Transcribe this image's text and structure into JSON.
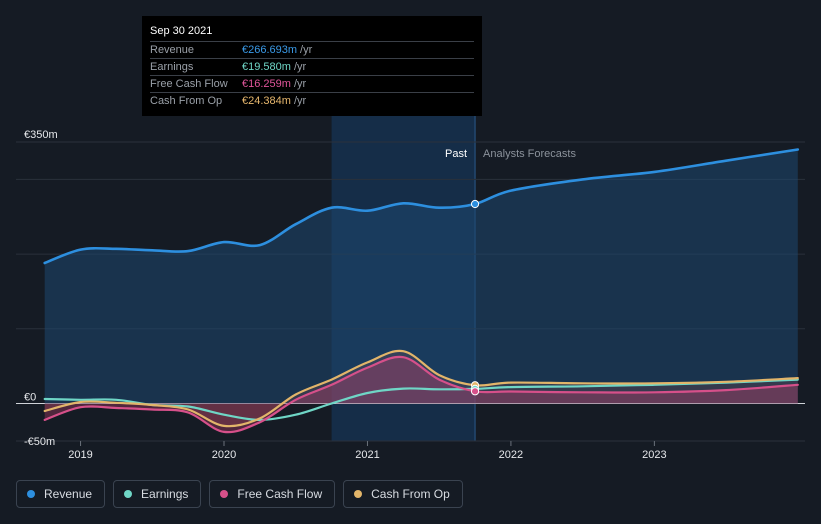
{
  "colors": {
    "revenue": "#2d8fdf",
    "earnings": "#6fd6c6",
    "fcf": "#d6508a",
    "cfo": "#e2b56a"
  },
  "tooltip": {
    "date": "Sep 30 2021",
    "rows": [
      {
        "label": "Revenue",
        "value": "€266.693m",
        "unit": "/yr",
        "color": "#3a9ae8"
      },
      {
        "label": "Earnings",
        "value": "€19.580m",
        "unit": "/yr",
        "color": "#6fd6c6"
      },
      {
        "label": "Free Cash Flow",
        "value": "€16.259m",
        "unit": "/yr",
        "color": "#e0559a"
      },
      {
        "label": "Cash From Op",
        "value": "€24.384m",
        "unit": "/yr",
        "color": "#e8b86e"
      }
    ]
  },
  "legend": [
    {
      "label": "Revenue",
      "color": "#2d8fdf"
    },
    {
      "label": "Earnings",
      "color": "#6fd6c6"
    },
    {
      "label": "Free Cash Flow",
      "color": "#d6508a"
    },
    {
      "label": "Cash From Op",
      "color": "#e2b56a"
    }
  ],
  "chart_data": {
    "type": "line",
    "y_tick_labels": [
      "€350m",
      "€0",
      "-€50m"
    ],
    "ylim": [
      -50,
      350
    ],
    "x_tick_labels": [
      "2019",
      "2020",
      "2021",
      "2022",
      "2023"
    ],
    "xlim": [
      2018.55,
      2024.05
    ],
    "past_label": "Past",
    "forecast_label": "Analysts Forecasts",
    "past_end": 2021.75,
    "highlight_start": 2020.75,
    "series": [
      {
        "name": "Revenue",
        "key": "revenue",
        "x": [
          2018.75,
          2019.0,
          2019.25,
          2019.5,
          2019.75,
          2020.0,
          2020.25,
          2020.5,
          2020.75,
          2021.0,
          2021.25,
          2021.5,
          2021.75,
          2022.0,
          2022.5,
          2023.0,
          2023.5,
          2024.0
        ],
        "y": [
          188,
          206,
          207,
          205,
          204,
          216,
          212,
          240,
          262,
          258,
          268,
          262,
          267,
          285,
          300,
          310,
          325,
          340
        ]
      },
      {
        "name": "Earnings",
        "key": "earnings",
        "x": [
          2018.75,
          2019.0,
          2019.25,
          2019.5,
          2019.75,
          2020.0,
          2020.25,
          2020.5,
          2020.75,
          2021.0,
          2021.25,
          2021.5,
          2021.75,
          2022.0,
          2022.5,
          2023.0,
          2023.5,
          2024.0
        ],
        "y": [
          6,
          5,
          5,
          -2,
          -4,
          -15,
          -22,
          -15,
          0,
          14,
          20,
          19,
          19.6,
          22,
          23,
          25,
          28,
          32
        ]
      },
      {
        "name": "Free Cash Flow",
        "key": "fcf",
        "x": [
          2018.75,
          2019.0,
          2019.25,
          2019.5,
          2019.75,
          2020.0,
          2020.25,
          2020.5,
          2020.75,
          2021.0,
          2021.25,
          2021.5,
          2021.75,
          2022.0,
          2022.5,
          2023.0,
          2023.5,
          2024.0
        ],
        "y": [
          -22,
          -5,
          -6,
          -8,
          -12,
          -38,
          -25,
          5,
          25,
          48,
          62,
          32,
          16.3,
          16,
          15,
          15,
          18,
          25
        ]
      },
      {
        "name": "Cash From Op",
        "key": "cfo",
        "x": [
          2018.75,
          2019.0,
          2019.25,
          2019.5,
          2019.75,
          2020.0,
          2020.25,
          2020.5,
          2020.75,
          2021.0,
          2021.25,
          2021.5,
          2021.75,
          2022.0,
          2022.5,
          2023.0,
          2023.5,
          2024.0
        ],
        "y": [
          -10,
          2,
          1,
          -2,
          -8,
          -30,
          -20,
          12,
          32,
          55,
          70,
          38,
          24.4,
          28,
          27,
          27,
          29,
          34
        ]
      }
    ]
  }
}
